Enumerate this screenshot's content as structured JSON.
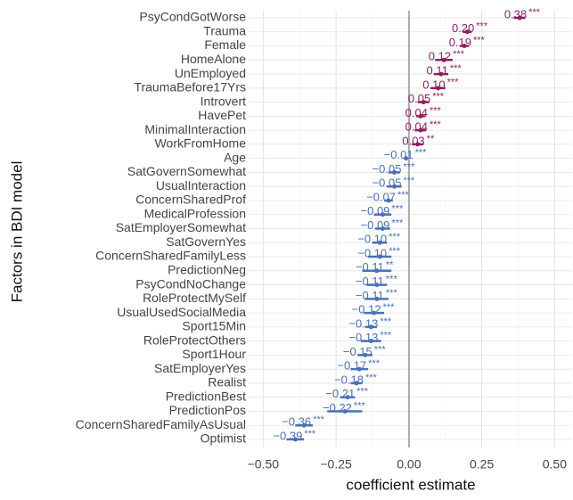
{
  "chart_data": {
    "type": "coefplot",
    "x_label": "coefficient estimate",
    "y_label": "Factors in BDI model",
    "categories": [
      "PsyCondGotWorse",
      "Trauma",
      "Female",
      "HomeAlone",
      "UnEmployed",
      "TraumaBefore17Yrs",
      "Introvert",
      "HavePet",
      "MinimalInteraction",
      "WorkFromHome",
      "Age",
      "SatGovernSomewhat",
      "UsualInteraction",
      "ConcernSharedProf",
      "MedicalProfession",
      "SatEmployerSomewhat",
      "SatGovernYes",
      "ConcernSharedFamilyLess",
      "PredictionNeg",
      "PsyCondNoChange",
      "RoleProtectMySelf",
      "UsualUsedSocialMedia",
      "Sport15Min",
      "RoleProtectOthers",
      "Sport1Hour",
      "SatEmployerYes",
      "Realist",
      "PredictionBest",
      "PredictionPos",
      "ConcernSharedFamilyAsUsual",
      "Optimist"
    ],
    "values": [
      0.38,
      0.2,
      0.19,
      0.12,
      0.11,
      0.1,
      0.05,
      0.04,
      0.04,
      0.03,
      -0.01,
      -0.05,
      -0.05,
      -0.07,
      -0.09,
      -0.09,
      -0.1,
      -0.1,
      -0.11,
      -0.11,
      -0.11,
      -0.12,
      -0.13,
      -0.13,
      -0.15,
      -0.17,
      -0.18,
      -0.21,
      -0.22,
      -0.36,
      -0.39
    ],
    "value_labels": [
      "0.38",
      "0.20",
      "0.19",
      "0.12",
      "0.11",
      "0.10",
      "0.05",
      "0.04",
      "0.04",
      "0.03",
      "−0.01",
      "−0.05",
      "−0.05",
      "−0.07",
      "−0.09",
      "−0.09",
      "−0.10",
      "−0.10",
      "−0.11",
      "−0.11",
      "−0.11",
      "−0.12",
      "−0.13",
      "−0.13",
      "−0.15",
      "−0.17",
      "−0.18",
      "−0.21",
      "−0.22",
      "−0.36",
      "−0.39"
    ],
    "errors": [
      0.02,
      0.015,
      0.015,
      0.03,
      0.025,
      0.025,
      0.02,
      0.015,
      0.02,
      0.02,
      0.005,
      0.02,
      0.025,
      0.015,
      0.03,
      0.025,
      0.025,
      0.04,
      0.05,
      0.035,
      0.04,
      0.035,
      0.02,
      0.035,
      0.025,
      0.03,
      0.02,
      0.025,
      0.06,
      0.03,
      0.03
    ],
    "stars": [
      "***",
      "***",
      "***",
      "***",
      "***",
      "***",
      "***",
      "***",
      "***",
      "**",
      "***",
      "***",
      "***",
      "***",
      "***",
      "***",
      "***",
      "***",
      "**",
      "***",
      "***",
      "***",
      "***",
      "***",
      "***",
      "***",
      "***",
      "***",
      "***",
      "***",
      "***"
    ],
    "pos_color": "#8e1f5f",
    "neg_color": "#4a70b5",
    "xlim": [
      -0.55,
      0.56
    ],
    "xticks": [
      {
        "value": -0.5,
        "label": "−0.50"
      },
      {
        "value": -0.25,
        "label": "−0.25"
      },
      {
        "value": 0,
        "label": "0.00"
      },
      {
        "value": 0.25,
        "label": "0.25"
      },
      {
        "value": 0.5,
        "label": "0.50"
      }
    ],
    "grid": true
  }
}
